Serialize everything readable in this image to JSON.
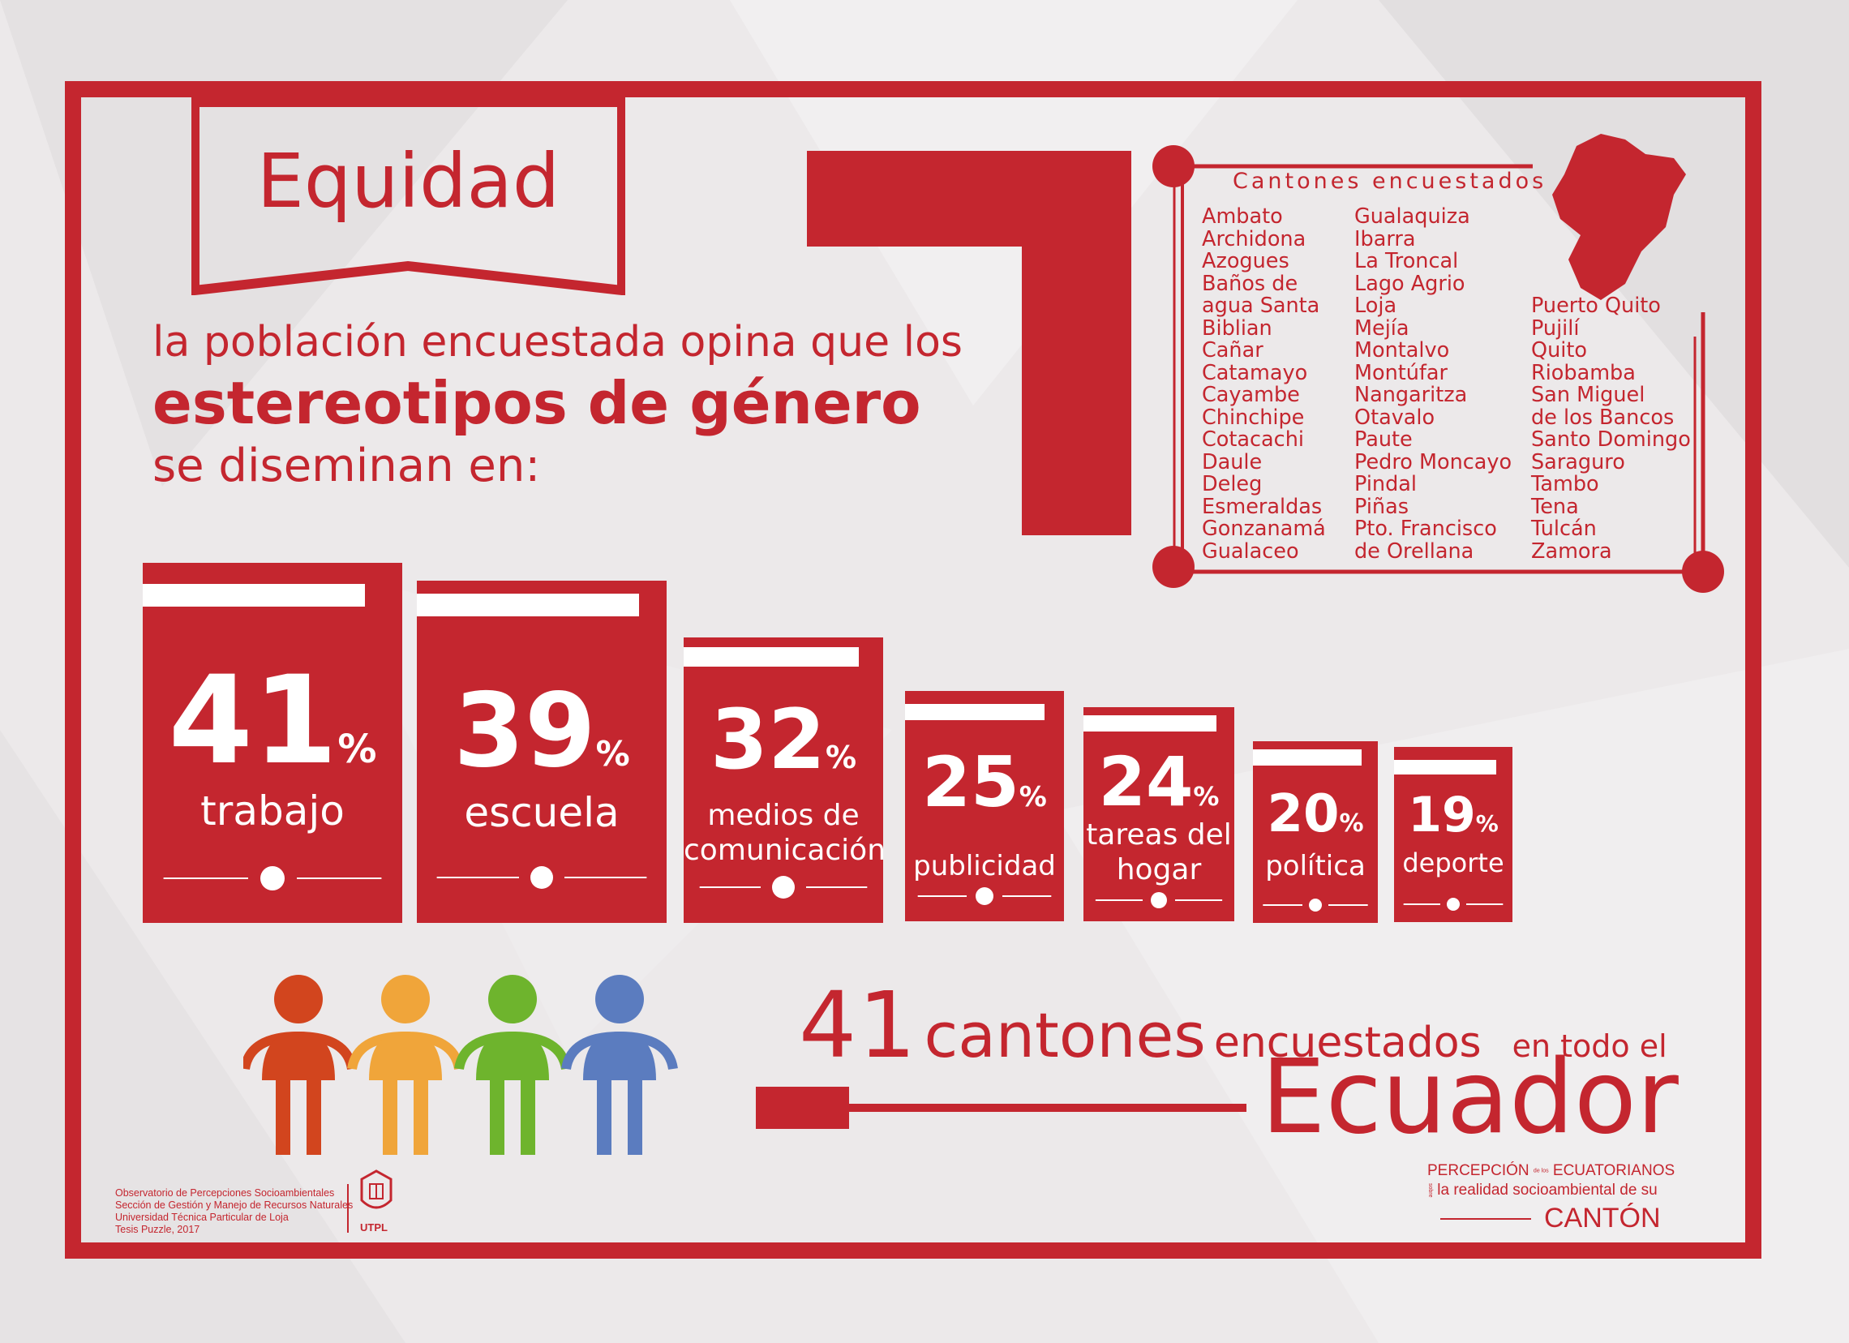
{
  "banner": {
    "title": "Equidad"
  },
  "intro": {
    "line1": "la población encuestada opina que los",
    "line2": "estereotipos de género",
    "line3": "se diseminan en:"
  },
  "cantons": {
    "title": "Cantones encuestados",
    "col1": [
      "Ambato",
      "Archidona",
      "Azogues",
      "Baños de",
      "agua Santa",
      "Biblian",
      "Cañar",
      "Catamayo",
      "Cayambe",
      "Chinchipe",
      "Cotacachi",
      "Daule",
      "Deleg",
      "Esmeraldas",
      "Gonzanamá",
      "Gualaceo"
    ],
    "col2": [
      "Gualaquiza",
      "Ibarra",
      "La Troncal",
      "Lago Agrio",
      "Loja",
      "Mejía",
      "Montalvo",
      "Montúfar",
      "Nangaritza",
      "Otavalo",
      "Paute",
      "Pedro Moncayo",
      "Pindal",
      "Piñas",
      "Pto. Francisco",
      "de Orellana"
    ],
    "col3": [
      "Puerto Quito",
      "Pujilí",
      "Quito",
      "Riobamba",
      "San Miguel",
      "de los Bancos",
      "Santo Domingo",
      "Saraguro",
      "Tambo",
      "Tena",
      "Tulcán",
      "Zamora"
    ]
  },
  "chart_data": {
    "type": "bar",
    "categories": [
      "trabajo",
      "escuela",
      "medios de comunicación",
      "publicidad",
      "tareas del hogar",
      "política",
      "deporte"
    ],
    "values": [
      41,
      39,
      32,
      25,
      24,
      20,
      19
    ],
    "unit": "%"
  },
  "bars": [
    {
      "value": "41",
      "unit": "%",
      "label_lines": [
        "trabajo"
      ]
    },
    {
      "value": "39",
      "unit": "%",
      "label_lines": [
        "escuela"
      ]
    },
    {
      "value": "32",
      "unit": "%",
      "label_lines": [
        "medios de",
        "comunicación"
      ]
    },
    {
      "value": "25",
      "unit": "%",
      "label_lines": [
        "publicidad"
      ]
    },
    {
      "value": "24",
      "unit": "%",
      "label_lines": [
        "tareas del",
        "hogar"
      ]
    },
    {
      "value": "20",
      "unit": "%",
      "label_lines": [
        "política"
      ]
    },
    {
      "value": "19",
      "unit": "%",
      "label_lines": [
        "deporte"
      ]
    }
  ],
  "stat": {
    "number": "41",
    "word1": "cantones",
    "word2": "encuestados",
    "word3": "en todo el",
    "country": "Ecuador"
  },
  "people_colors": [
    "#d2451e",
    "#f0a53a",
    "#6eb42d",
    "#5b7cbf"
  ],
  "credits": [
    "Observatorio de Percepciones Socioambientales",
    "Sección de Gestión y Manejo de Recursos Naturales",
    "Universidad Técnica Particular de Loja",
    "Tesis Puzzle, 2017"
  ],
  "utpl": "UTPL",
  "project": {
    "word1": "PERCEPCIÓN",
    "small1": "de los",
    "word2": "ECUATORIANOS",
    "small2": "sobre",
    "line2": "la realidad socioambiental de su",
    "line3": "CANTÓN"
  },
  "colors": {
    "accent": "#c4262f",
    "background": "#ece9ea"
  }
}
